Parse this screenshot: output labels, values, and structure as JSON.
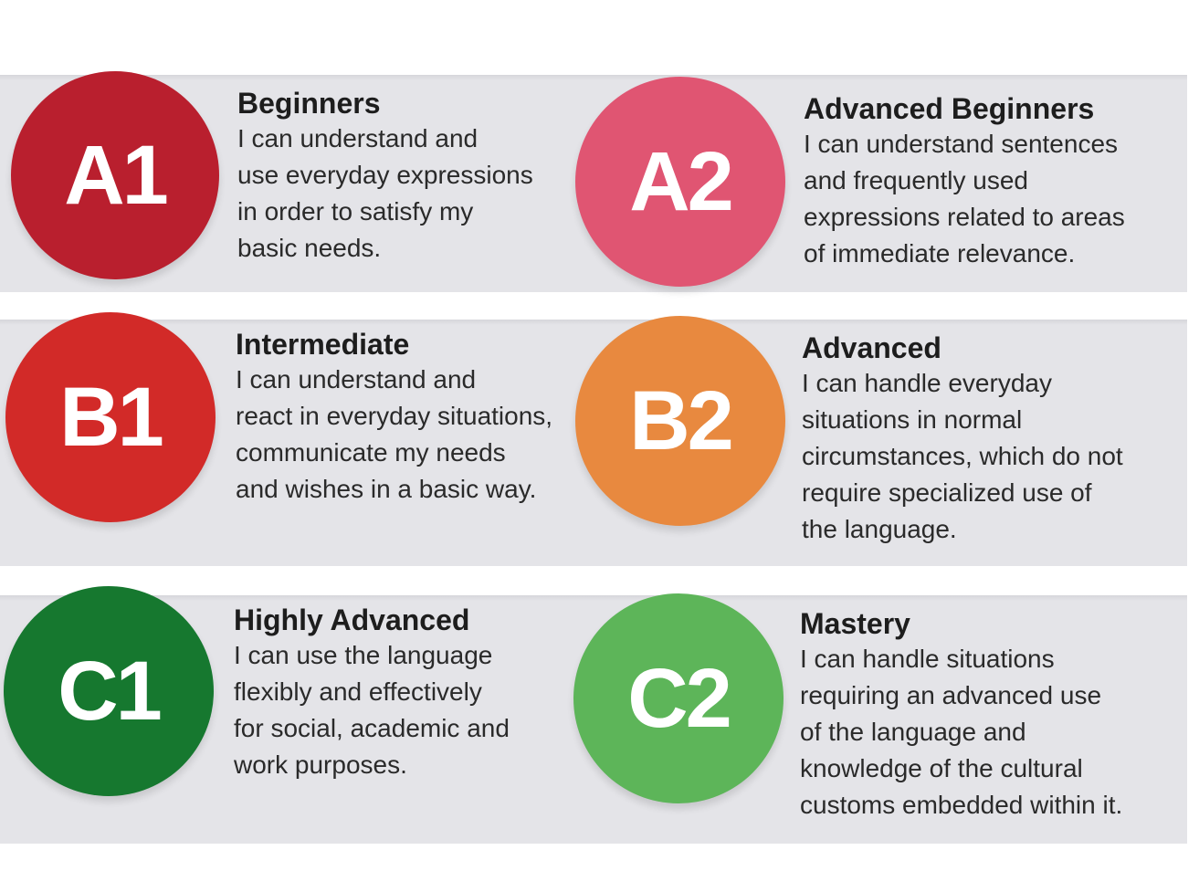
{
  "levels": [
    {
      "code": "A1",
      "title": "Beginners",
      "description": "I can understand and\nuse everyday expressions\nin order to satisfy my\nbasic needs.",
      "color": "#b91f2e"
    },
    {
      "code": "A2",
      "title": "Advanced Beginners",
      "description": "I can understand sentences\nand frequently used\nexpressions related to areas\nof immediate relevance.",
      "color": "#e05572"
    },
    {
      "code": "B1",
      "title": "Intermediate",
      "description": "I can understand and\nreact in everyday situations,\ncommunicate my needs\nand wishes in a basic way.",
      "color": "#d22a28"
    },
    {
      "code": "B2",
      "title": "Advanced",
      "description": "I can handle everyday\nsituations in normal\ncircumstances, which do not\nrequire specialized use of\nthe language.",
      "color": "#e8893f"
    },
    {
      "code": "C1",
      "title": "Highly Advanced",
      "description": "I can use the language\nflexibly and effectively\nfor social, academic and\nwork purposes.",
      "color": "#16782f"
    },
    {
      "code": "C2",
      "title": "Mastery",
      "description": "I can handle situations\nrequiring an advanced use\nof the language and\nknowledge of the cultural\ncustoms embedded within it.",
      "color": "#5db559"
    }
  ]
}
